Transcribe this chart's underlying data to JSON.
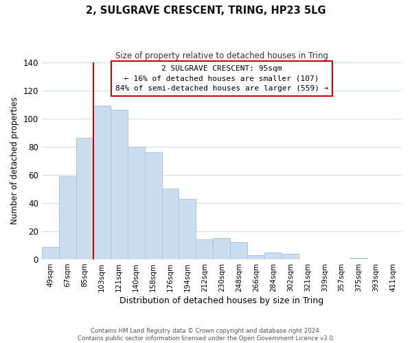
{
  "title": "2, SULGRAVE CRESCENT, TRING, HP23 5LG",
  "subtitle": "Size of property relative to detached houses in Tring",
  "xlabel": "Distribution of detached houses by size in Tring",
  "ylabel": "Number of detached properties",
  "bar_labels": [
    "49sqm",
    "67sqm",
    "85sqm",
    "103sqm",
    "121sqm",
    "140sqm",
    "158sqm",
    "176sqm",
    "194sqm",
    "212sqm",
    "230sqm",
    "248sqm",
    "266sqm",
    "284sqm",
    "302sqm",
    "321sqm",
    "339sqm",
    "357sqm",
    "375sqm",
    "393sqm",
    "411sqm"
  ],
  "bar_values": [
    9,
    59,
    86,
    109,
    106,
    80,
    76,
    50,
    43,
    14,
    15,
    12,
    3,
    5,
    4,
    0,
    0,
    0,
    1,
    0,
    0
  ],
  "bar_color": "#ccddf0",
  "bar_edge_color": "#a8c4e0",
  "vline_color": "#cc0000",
  "ylim": [
    0,
    140
  ],
  "yticks": [
    0,
    20,
    40,
    60,
    80,
    100,
    120,
    140
  ],
  "annotation_line1": "2 SULGRAVE CRESCENT: 95sqm",
  "annotation_line2": "← 16% of detached houses are smaller (107)",
  "annotation_line3": "84% of semi-detached houses are larger (559) →",
  "annotation_box_edge": "#cc0000",
  "footer": "Contains HM Land Registry data © Crown copyright and database right 2024.\nContains public sector information licensed under the Open Government Licence v3.0.",
  "background_color": "#ffffff",
  "grid_color": "#d0dce8"
}
